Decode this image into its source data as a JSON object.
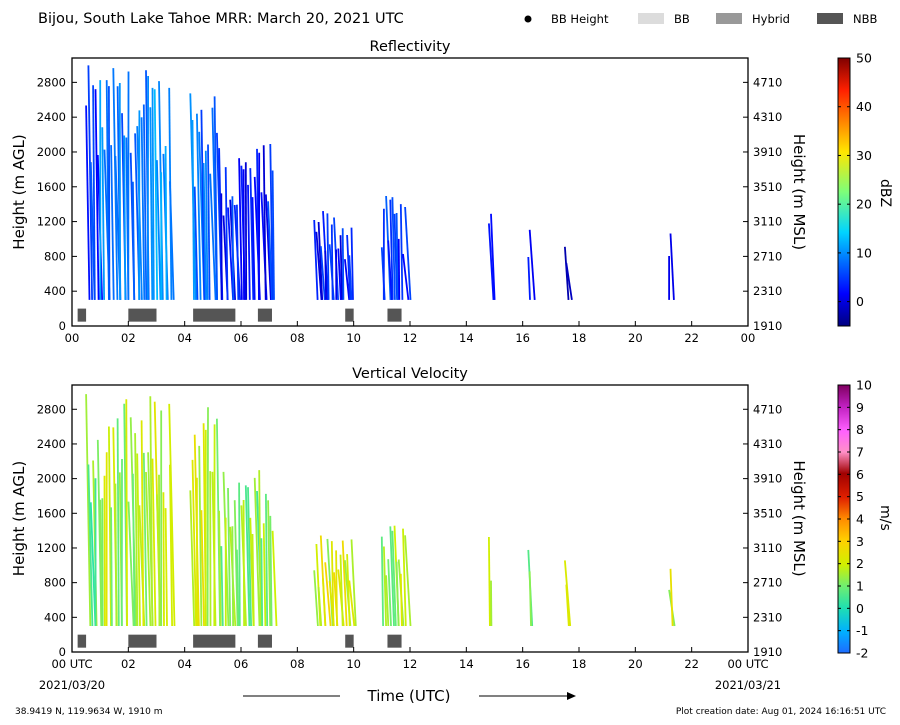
{
  "header": {
    "title": "Bijou, South Lake Tahoe MRR:  March 20, 2021 UTC",
    "legend": [
      {
        "label": "BB Height",
        "marker": "dot",
        "color": "#000000"
      },
      {
        "label": "BB",
        "marker": "patch",
        "color": "#dcdcdc"
      },
      {
        "label": "Hybrid",
        "marker": "patch",
        "color": "#999999"
      },
      {
        "label": "NBB",
        "marker": "patch",
        "color": "#555555"
      }
    ]
  },
  "footer": {
    "location": "38.9419 N, 119.9634 W, 1910 m",
    "creation": "Plot creation date: Aug 01, 2024 16:16:51 UTC",
    "xlabel": "Time (UTC)",
    "start_date": "2021/03/20",
    "end_date": "2021/03/21"
  },
  "chart_data": [
    {
      "type": "heatmap",
      "title": "Reflectivity",
      "ylabel": "Height (m AGL)",
      "ylabel_right": "Height (m MSL)",
      "ylim": [
        0,
        3080
      ],
      "xlim": [
        0,
        24
      ],
      "x_ticks": [
        "00",
        "02",
        "04",
        "06",
        "08",
        "10",
        "12",
        "14",
        "16",
        "18",
        "20",
        "22",
        "00"
      ],
      "y_ticks": [
        0,
        400,
        800,
        1200,
        1600,
        2000,
        2400,
        2800
      ],
      "y_ticks_right": [
        1910,
        2310,
        2710,
        3110,
        3510,
        3910,
        4310,
        4710
      ],
      "colorbar": {
        "label": "dBZ",
        "min": -5,
        "max": 50,
        "ticks": [
          0,
          10,
          20,
          30,
          40,
          50
        ]
      },
      "precip_segments": [
        {
          "start": 0.5,
          "end": 1.0,
          "top": 3000,
          "value": 4
        },
        {
          "start": 1.0,
          "end": 3.4,
          "top": 3000,
          "value": 9
        },
        {
          "start": 3.45,
          "end": 3.5,
          "top": 3000,
          "value": 10
        },
        {
          "start": 4.2,
          "end": 5.3,
          "top": 2900,
          "value": 8
        },
        {
          "start": 5.3,
          "end": 7.2,
          "top": 2100,
          "value": 3
        },
        {
          "start": 8.6,
          "end": 10.0,
          "top": 1350,
          "value": 3
        },
        {
          "start": 11.0,
          "end": 11.9,
          "top": 1500,
          "value": 5
        },
        {
          "start": 14.8,
          "end": 14.95,
          "top": 1300,
          "value": 1
        },
        {
          "start": 16.2,
          "end": 16.3,
          "top": 1300,
          "value": 1
        },
        {
          "start": 17.5,
          "end": 17.6,
          "top": 1200,
          "value": 1
        },
        {
          "start": 21.2,
          "end": 21.3,
          "top": 1100,
          "value": 1
        }
      ],
      "bright_band": [
        {
          "type": "NBB",
          "start": 0.2,
          "end": 0.5
        },
        {
          "type": "NBB",
          "start": 2.0,
          "end": 3.0
        },
        {
          "type": "NBB",
          "start": 4.3,
          "end": 5.8
        },
        {
          "type": "NBB",
          "start": 6.6,
          "end": 7.1
        },
        {
          "type": "NBB",
          "start": 9.7,
          "end": 10.0
        },
        {
          "type": "NBB",
          "start": 11.2,
          "end": 11.7
        }
      ]
    },
    {
      "type": "heatmap",
      "title": "Vertical Velocity",
      "ylabel": "Height (m AGL)",
      "ylabel_right": "Height (m MSL)",
      "ylim": [
        0,
        3080
      ],
      "xlim": [
        0,
        24
      ],
      "x_ticks": [
        "00 UTC",
        "02",
        "04",
        "06",
        "08",
        "10",
        "12",
        "14",
        "16",
        "18",
        "20",
        "22",
        "00 UTC"
      ],
      "y_ticks": [
        0,
        400,
        800,
        1200,
        1600,
        2000,
        2400,
        2800
      ],
      "y_ticks_right": [
        1910,
        2310,
        2710,
        3110,
        3510,
        3910,
        4310,
        4710
      ],
      "colorbar": {
        "label": "m/s",
        "min": -2,
        "max": 10,
        "ticks": [
          -2,
          -1,
          0,
          1,
          2,
          3,
          4,
          5,
          6,
          7,
          8,
          9,
          10
        ]
      },
      "precip_segments": [
        {
          "start": 0.5,
          "end": 1.0,
          "top": 3000,
          "value": 1.0
        },
        {
          "start": 1.0,
          "end": 3.4,
          "top": 3000,
          "value": 1.6
        },
        {
          "start": 3.45,
          "end": 3.5,
          "top": 3000,
          "value": 2.5
        },
        {
          "start": 4.2,
          "end": 5.3,
          "top": 2900,
          "value": 1.8
        },
        {
          "start": 5.3,
          "end": 7.2,
          "top": 2100,
          "value": 1.2
        },
        {
          "start": 8.6,
          "end": 10.0,
          "top": 1350,
          "value": 2.0
        },
        {
          "start": 11.0,
          "end": 11.9,
          "top": 1500,
          "value": 1.5
        },
        {
          "start": 14.8,
          "end": 14.95,
          "top": 1400,
          "value": 2.2
        },
        {
          "start": 16.2,
          "end": 16.3,
          "top": 1300,
          "value": 1.0
        },
        {
          "start": 17.5,
          "end": 17.6,
          "top": 1200,
          "value": 2.0
        },
        {
          "start": 21.2,
          "end": 21.3,
          "top": 1100,
          "value": 2.0
        }
      ],
      "bright_band": [
        {
          "type": "NBB",
          "start": 0.2,
          "end": 0.5
        },
        {
          "type": "NBB",
          "start": 2.0,
          "end": 3.0
        },
        {
          "type": "NBB",
          "start": 4.3,
          "end": 5.8
        },
        {
          "type": "NBB",
          "start": 6.6,
          "end": 7.1
        },
        {
          "type": "NBB",
          "start": 9.7,
          "end": 10.0
        },
        {
          "type": "NBB",
          "start": 11.2,
          "end": 11.7
        }
      ]
    }
  ]
}
